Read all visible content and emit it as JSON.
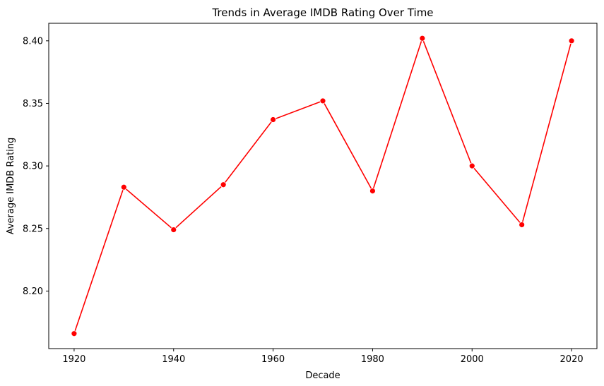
{
  "chart_data": {
    "type": "line",
    "title": "Trends in Average IMDB Rating Over Time",
    "xlabel": "Decade",
    "ylabel": "Average IMDB Rating",
    "xlim": [
      1914.9,
      2025.1
    ],
    "ylim": [
      8.154,
      8.414
    ],
    "x_ticks": [
      1920,
      1940,
      1960,
      1980,
      2000,
      2020
    ],
    "x_tick_labels": [
      "1920",
      "1940",
      "1960",
      "1980",
      "2000",
      "2020"
    ],
    "y_ticks": [
      8.2,
      8.25,
      8.3,
      8.35,
      8.4
    ],
    "y_tick_labels": [
      "8.20",
      "8.25",
      "8.30",
      "8.35",
      "8.40"
    ],
    "grid": false,
    "legend": null,
    "series": [
      {
        "color": "#ff0000",
        "marker": "circle",
        "x": [
          1920,
          1930,
          1940,
          1950,
          1960,
          1970,
          1980,
          1990,
          2000,
          2010,
          2020
        ],
        "y": [
          8.166,
          8.283,
          8.249,
          8.285,
          8.337,
          8.352,
          8.28,
          8.402,
          8.3,
          8.253,
          8.4
        ]
      }
    ]
  }
}
